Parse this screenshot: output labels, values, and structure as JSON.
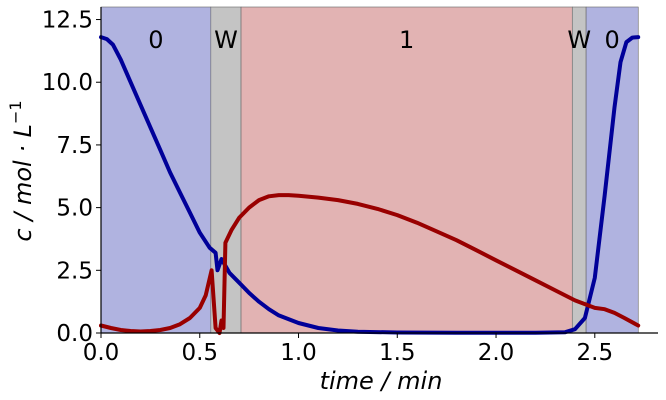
{
  "chart_data": {
    "type": "line",
    "xlabel": "time / min",
    "ylabel_main": "c / mol · L",
    "ylabel_sup": "−1",
    "xlim": [
      0,
      2.82
    ],
    "ylim": [
      0,
      13
    ],
    "xticks": [
      0.0,
      0.5,
      1.0,
      1.5,
      2.0,
      2.5
    ],
    "xtick_labels": [
      "0.0",
      "0.5",
      "1.0",
      "1.5",
      "2.0",
      "2.5"
    ],
    "yticks": [
      0.0,
      2.5,
      5.0,
      7.5,
      10.0,
      12.5
    ],
    "ytick_labels": [
      "0.0",
      "2.5",
      "5.0",
      "7.5",
      "10.0",
      "12.5"
    ],
    "regions": [
      {
        "start": 0.0,
        "end": 0.556,
        "label": "0",
        "color": "#b0b3e0"
      },
      {
        "start": 0.556,
        "end": 0.709,
        "label": "W",
        "color": "#c4c4c4"
      },
      {
        "start": 0.709,
        "end": 2.386,
        "label": "1",
        "color": "#e2b3b3"
      },
      {
        "start": 2.386,
        "end": 2.456,
        "label": "W",
        "color": "#c4c4c4"
      },
      {
        "start": 2.456,
        "end": 2.72,
        "label": "0",
        "color": "#b0b3e0"
      }
    ],
    "series": [
      {
        "color": "#000099",
        "points": [
          [
            0.0,
            11.8
          ],
          [
            0.03,
            11.72
          ],
          [
            0.06,
            11.5
          ],
          [
            0.1,
            10.9
          ],
          [
            0.15,
            10.0
          ],
          [
            0.2,
            9.1
          ],
          [
            0.25,
            8.2
          ],
          [
            0.3,
            7.3
          ],
          [
            0.35,
            6.4
          ],
          [
            0.4,
            5.6
          ],
          [
            0.45,
            4.8
          ],
          [
            0.5,
            4.0
          ],
          [
            0.55,
            3.4
          ],
          [
            0.58,
            3.2
          ],
          [
            0.59,
            2.5
          ],
          [
            0.61,
            2.95
          ],
          [
            0.65,
            2.4
          ],
          [
            0.7,
            2.0
          ],
          [
            0.75,
            1.6
          ],
          [
            0.8,
            1.25
          ],
          [
            0.85,
            0.95
          ],
          [
            0.9,
            0.7
          ],
          [
            1.0,
            0.4
          ],
          [
            1.1,
            0.2
          ],
          [
            1.2,
            0.1
          ],
          [
            1.3,
            0.05
          ],
          [
            1.5,
            0.02
          ],
          [
            1.8,
            0.01
          ],
          [
            2.2,
            0.01
          ],
          [
            2.35,
            0.03
          ],
          [
            2.4,
            0.15
          ],
          [
            2.45,
            0.6
          ],
          [
            2.5,
            2.2
          ],
          [
            2.55,
            5.5
          ],
          [
            2.6,
            9.0
          ],
          [
            2.63,
            10.8
          ],
          [
            2.66,
            11.6
          ],
          [
            2.69,
            11.78
          ],
          [
            2.72,
            11.8
          ]
        ]
      },
      {
        "color": "#990000",
        "points": [
          [
            0.0,
            0.3
          ],
          [
            0.05,
            0.2
          ],
          [
            0.1,
            0.12
          ],
          [
            0.15,
            0.08
          ],
          [
            0.2,
            0.06
          ],
          [
            0.25,
            0.08
          ],
          [
            0.3,
            0.12
          ],
          [
            0.35,
            0.2
          ],
          [
            0.4,
            0.35
          ],
          [
            0.45,
            0.6
          ],
          [
            0.5,
            1.0
          ],
          [
            0.53,
            1.5
          ],
          [
            0.56,
            2.5
          ],
          [
            0.58,
            0.2
          ],
          [
            0.6,
            0.0
          ],
          [
            0.61,
            0.5
          ],
          [
            0.62,
            0.2
          ],
          [
            0.63,
            3.6
          ],
          [
            0.66,
            4.1
          ],
          [
            0.7,
            4.6
          ],
          [
            0.75,
            5.0
          ],
          [
            0.8,
            5.3
          ],
          [
            0.85,
            5.45
          ],
          [
            0.9,
            5.5
          ],
          [
            0.95,
            5.5
          ],
          [
            1.0,
            5.47
          ],
          [
            1.1,
            5.4
          ],
          [
            1.2,
            5.3
          ],
          [
            1.3,
            5.15
          ],
          [
            1.4,
            4.95
          ],
          [
            1.5,
            4.7
          ],
          [
            1.6,
            4.4
          ],
          [
            1.7,
            4.05
          ],
          [
            1.8,
            3.7
          ],
          [
            1.9,
            3.3
          ],
          [
            2.0,
            2.9
          ],
          [
            2.1,
            2.5
          ],
          [
            2.2,
            2.1
          ],
          [
            2.3,
            1.7
          ],
          [
            2.4,
            1.3
          ],
          [
            2.5,
            1.0
          ],
          [
            2.55,
            0.95
          ],
          [
            2.6,
            0.8
          ],
          [
            2.65,
            0.6
          ],
          [
            2.72,
            0.3
          ]
        ]
      }
    ]
  }
}
